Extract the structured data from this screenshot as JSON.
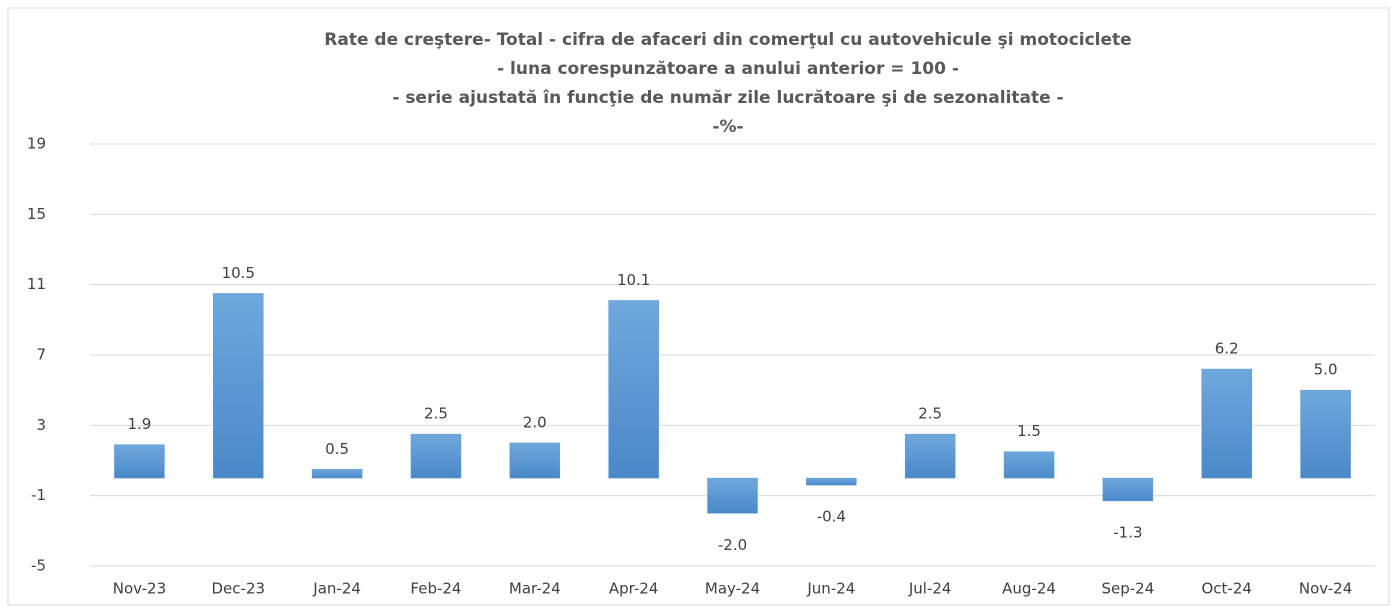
{
  "chart_data": {
    "type": "bar",
    "title": [
      "Rate de creştere- Total - cifra de afaceri din comerţul cu autovehicule şi motociclete",
      "- luna corespunzătoare a anului anterior = 100 -",
      "- serie ajustată în funcţie de număr zile lucrătoare şi de sezonalitate -",
      "-%-"
    ],
    "categories": [
      "Nov-23",
      "Dec-23",
      "Jan-24",
      "Feb-24",
      "Mar-24",
      "Apr-24",
      "May-24",
      "Jun-24",
      "Jul-24",
      "Aug-24",
      "Sep-24",
      "Oct-24",
      "Nov-24"
    ],
    "values": [
      1.9,
      10.5,
      0.5,
      2.5,
      2.0,
      10.1,
      -2.0,
      -0.4,
      2.5,
      1.5,
      -1.3,
      6.2,
      5.0
    ],
    "value_labels": [
      "1.9",
      "10.5",
      "0.5",
      "2.5",
      "2.0",
      "10.1",
      "-2.0",
      "-0.4",
      "2.5",
      "1.5",
      "-1.3",
      "6.2",
      "5.0"
    ],
    "color": "#5b9bd5",
    "ylim": [
      -5,
      19
    ],
    "yticks": [
      -5,
      -1,
      3,
      7,
      11,
      15,
      19
    ],
    "grid": true
  }
}
